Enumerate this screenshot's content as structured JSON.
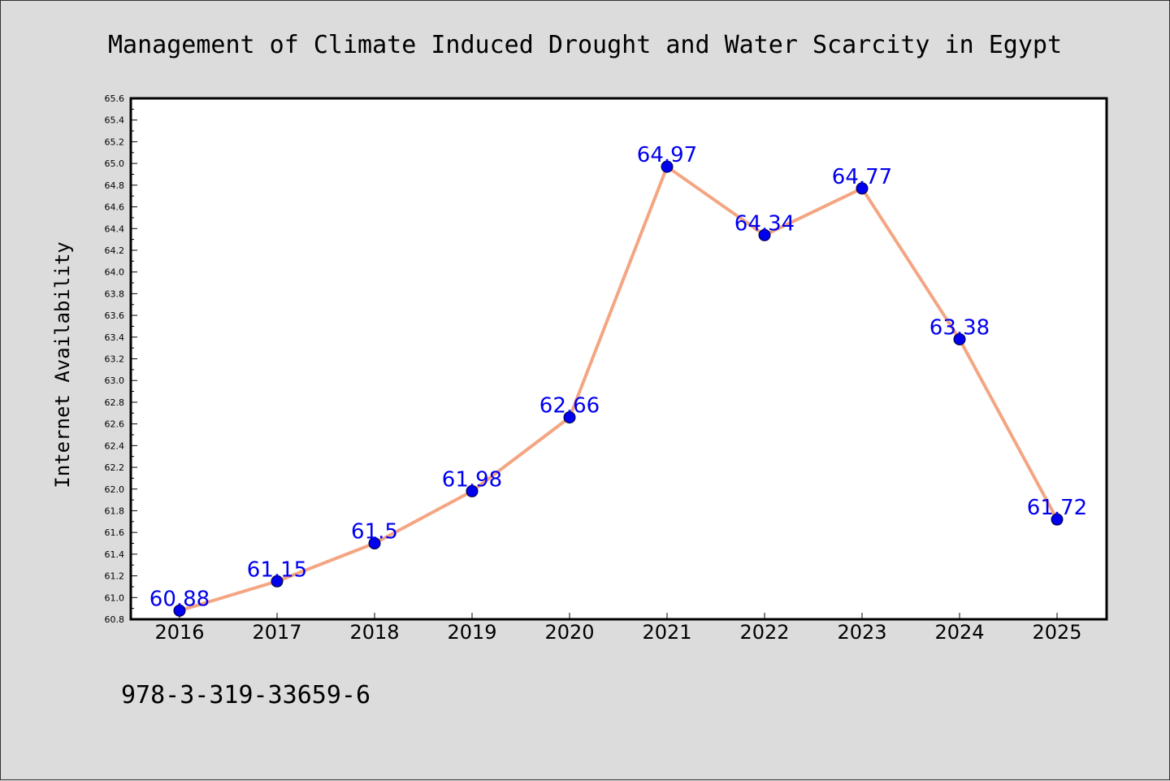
{
  "chart_data": {
    "type": "line",
    "title": "Management of Climate Induced Drought and Water Scarcity in Egypt",
    "xlabel": "",
    "ylabel": "Internet Availability",
    "categories": [
      "2016",
      "2017",
      "2018",
      "2019",
      "2020",
      "2021",
      "2022",
      "2023",
      "2024",
      "2025"
    ],
    "series": [
      {
        "values": [
          60.88,
          61.15,
          61.5,
          61.98,
          62.66,
          64.97,
          64.34,
          64.77,
          63.38,
          61.72
        ],
        "data_labels": [
          "60.88",
          "61.15",
          "61.5",
          "61.98",
          "62.66",
          "64.97",
          "64.34",
          "64.77",
          "63.38",
          "61.72"
        ],
        "line_color": "#f4a582",
        "marker_color": "#0000ee"
      }
    ],
    "ylim": [
      60.8,
      65.6
    ],
    "y_ticks": [
      "60.8",
      "61.0",
      "61.2",
      "61.4",
      "61.6",
      "61.8",
      "62.0",
      "62.2",
      "62.4",
      "62.6",
      "62.8",
      "63.0",
      "63.2",
      "63.4",
      "63.6",
      "63.8",
      "64.0",
      "64.2",
      "64.4",
      "64.6",
      "64.8",
      "65.0",
      "65.2",
      "65.4",
      "65.6"
    ],
    "grid": false,
    "legend": "none",
    "label_color": "#0000ee",
    "background": "#dcdcdc",
    "plot_background": "#ffffff"
  },
  "footer": {
    "text": "978-3-319-33659-6"
  }
}
